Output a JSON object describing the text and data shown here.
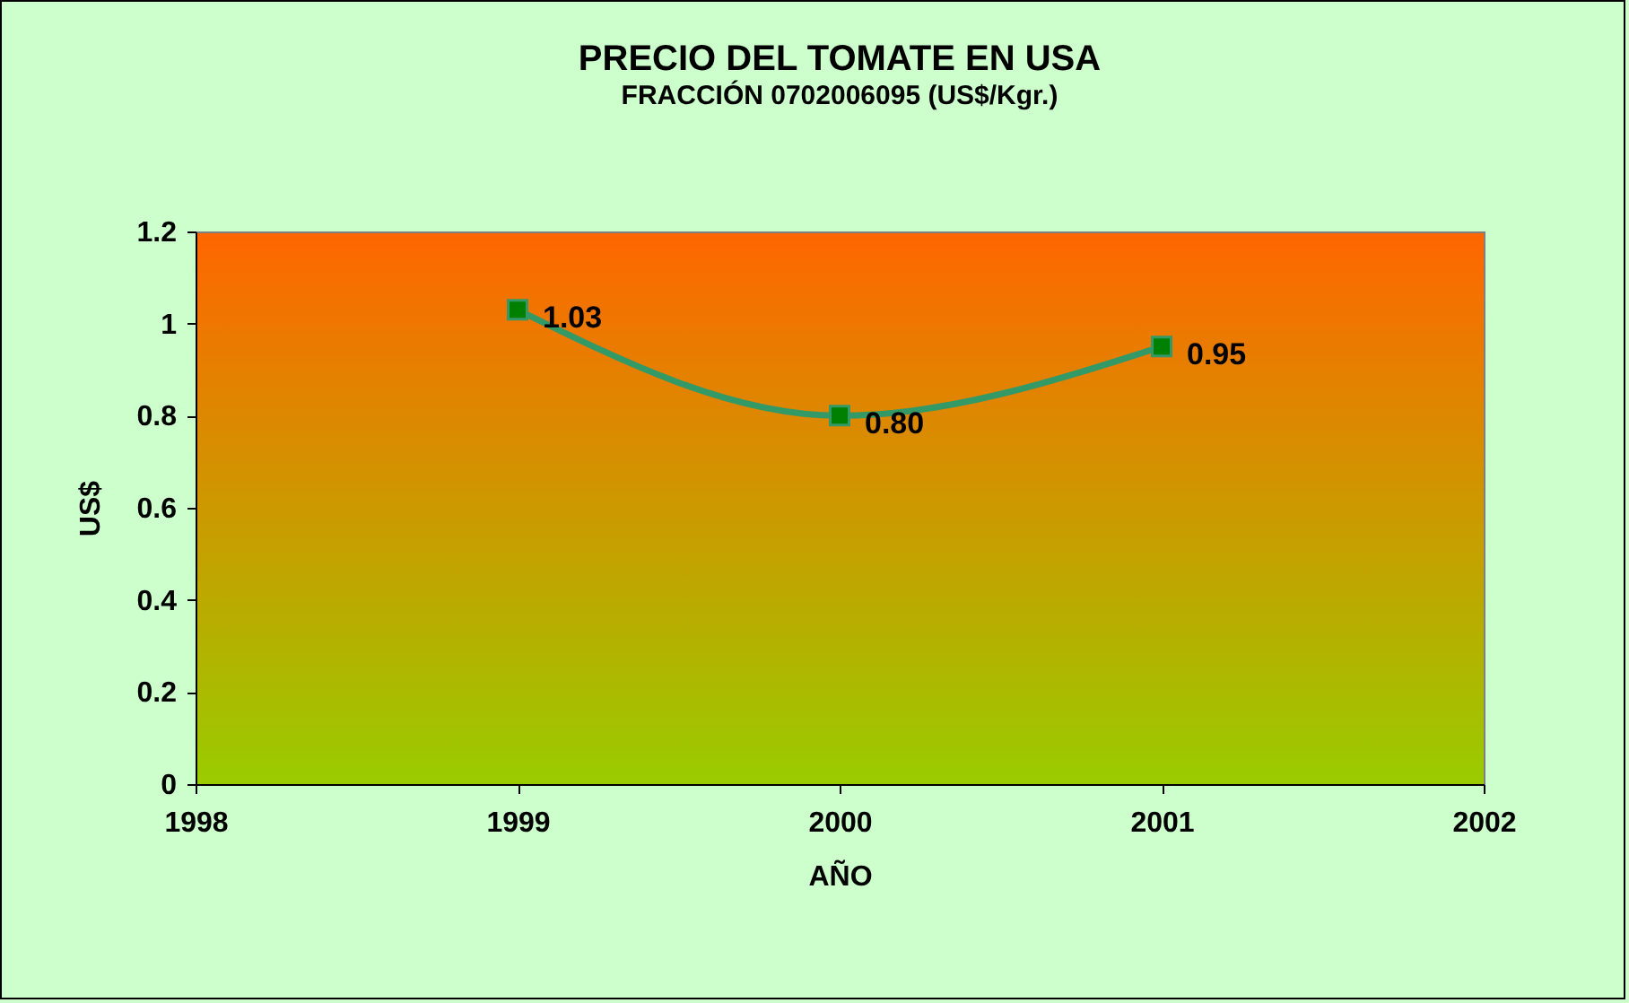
{
  "chart_data": {
    "type": "line",
    "title": "PRECIO DEL TOMATE EN USA",
    "subtitle": "FRACCIÓN   0702006095 (US$/Kgr.)",
    "xlabel": "AÑO",
    "ylabel": "US$",
    "x": [
      1999,
      2000,
      2001
    ],
    "series": [
      {
        "color": "#339966",
        "values": [
          1.03,
          0.8,
          0.95
        ],
        "value_labels": [
          "1.03",
          "0.80",
          "0.95"
        ]
      }
    ],
    "xlim": [
      1998,
      2002
    ],
    "xticks": [
      1998,
      1999,
      2000,
      2001,
      2002
    ],
    "ylim": [
      0,
      1.2
    ],
    "yticks": [
      0,
      0.2,
      0.4,
      0.6,
      0.8,
      1,
      1.2
    ],
    "marker": "square",
    "line_style": "solid",
    "grid": false
  }
}
